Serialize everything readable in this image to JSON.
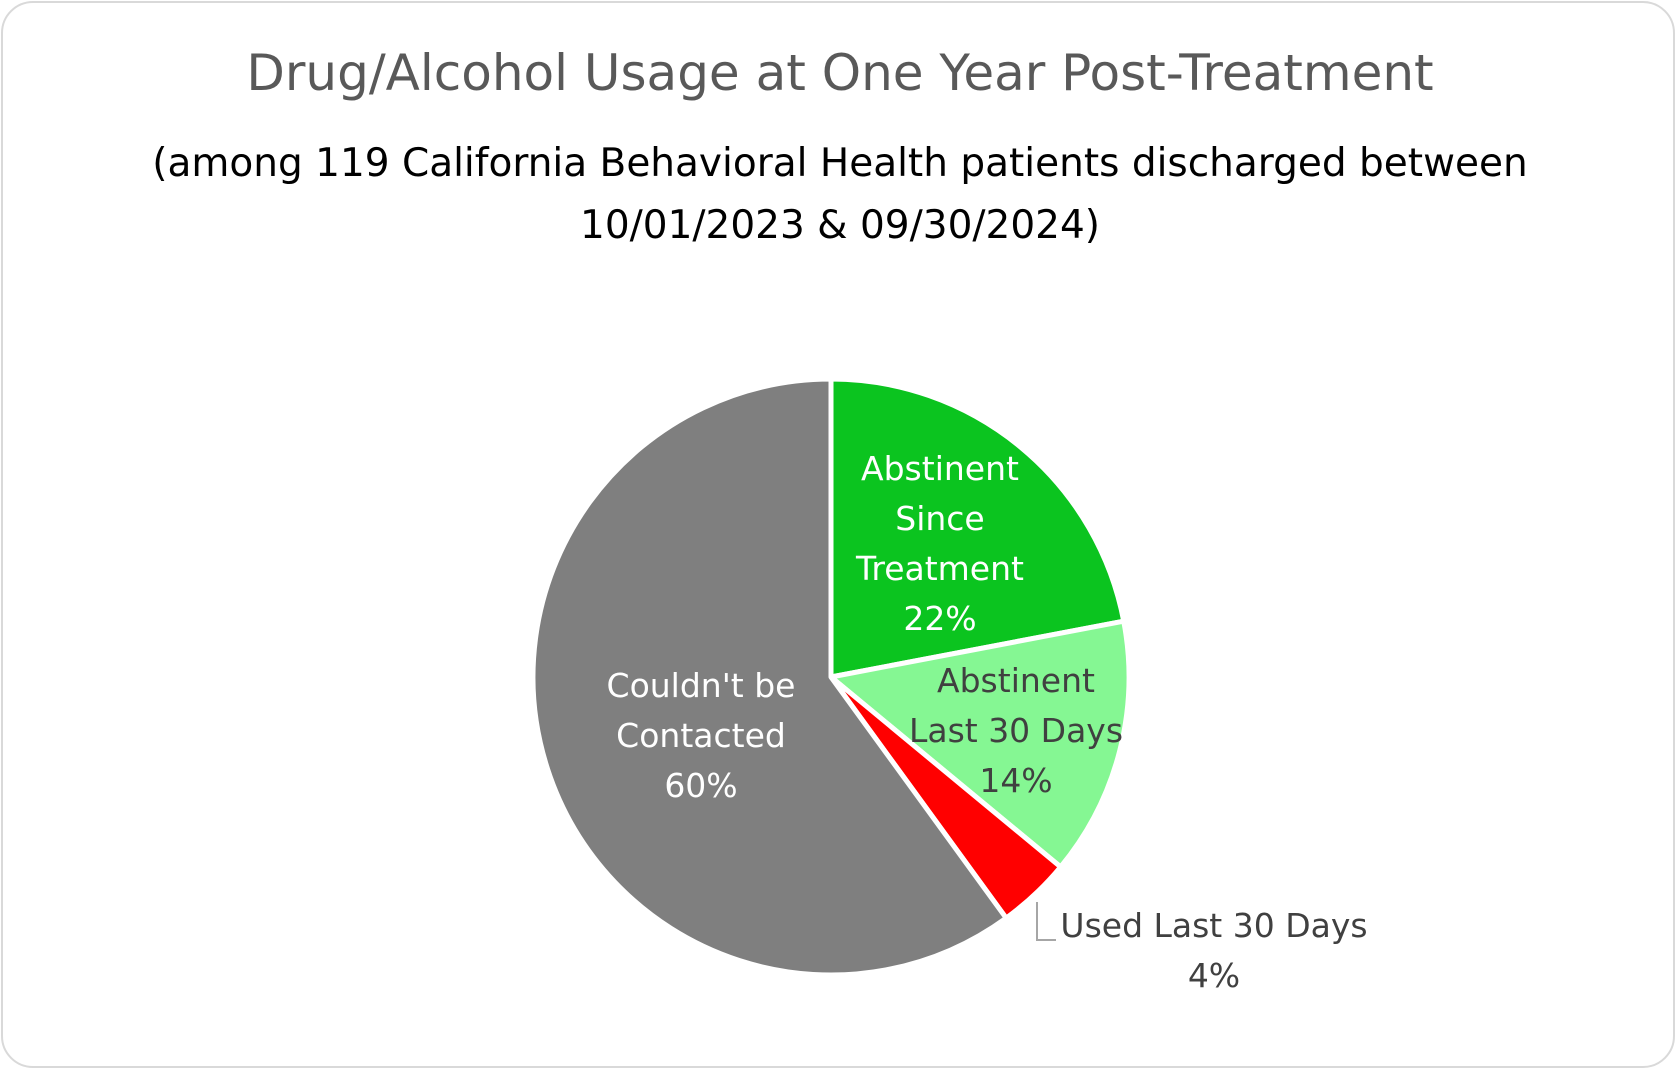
{
  "chart_data": {
    "type": "pie",
    "title": "Drug/Alcohol Usage at One Year Post-Treatment",
    "subtitle": "(among 119 California Behavioral Health patients discharged between 10/01/2023 & 09/30/2024)",
    "slices": [
      {
        "label_lines": [
          "Abstinent",
          "Since",
          "Treatment"
        ],
        "value": 22,
        "value_label": "22%",
        "color": "#0bc41f",
        "label_color": "#ffffff"
      },
      {
        "label_lines": [
          "Abstinent",
          "Last 30 Days"
        ],
        "value": 14,
        "value_label": "14%",
        "color": "#85f793",
        "label_color": "#404040"
      },
      {
        "label_lines": [
          "Used Last 30 Days"
        ],
        "value": 4,
        "value_label": "4%",
        "color": "#ff0000",
        "label_color": "#404040"
      },
      {
        "label_lines": [
          "Couldn't be",
          "Contacted"
        ],
        "value": 60,
        "value_label": "60%",
        "color": "#7f7f7f",
        "label_color": "#ffffff"
      }
    ],
    "start_angle": "12 o'clock",
    "direction": "clockwise",
    "legend": "none"
  }
}
